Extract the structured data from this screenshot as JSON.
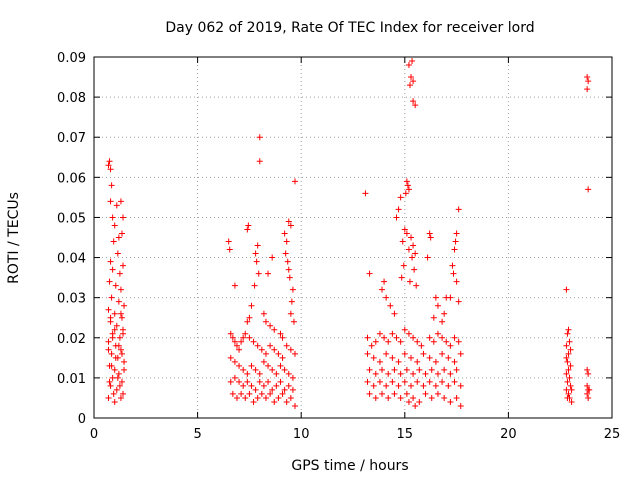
{
  "chart_data": {
    "type": "scatter",
    "title": "Day 062 of 2019, Rate Of TEC Index for receiver lord",
    "xlabel": "GPS time / hours",
    "ylabel": "ROTI / TECUs",
    "xlim": [
      0,
      25
    ],
    "ylim": [
      0,
      0.09
    ],
    "xticks": [
      0,
      5,
      10,
      15,
      20,
      25
    ],
    "yticks": [
      0,
      0.01,
      0.02,
      0.03,
      0.04,
      0.05,
      0.06,
      0.07,
      0.08,
      0.09
    ],
    "xtick_labels": [
      "0",
      "5",
      "10",
      "15",
      "20",
      "25"
    ],
    "ytick_labels": [
      "0",
      "0.01",
      "0.02",
      "0.03",
      "0.04",
      "0.05",
      "0.06",
      "0.07",
      "0.08",
      "0.09"
    ],
    "grid": true,
    "marker": "plus",
    "color": "#ff0000",
    "points": [
      [
        0.7,
        0.063
      ],
      [
        0.75,
        0.064
      ],
      [
        0.8,
        0.062
      ],
      [
        0.85,
        0.058
      ],
      [
        0.8,
        0.054
      ],
      [
        0.9,
        0.05
      ],
      [
        1.0,
        0.048
      ],
      [
        1.1,
        0.053
      ],
      [
        1.3,
        0.054
      ],
      [
        1.4,
        0.05
      ],
      [
        1.2,
        0.045
      ],
      [
        1.35,
        0.046
      ],
      [
        0.95,
        0.044
      ],
      [
        1.15,
        0.041
      ],
      [
        1.4,
        0.038
      ],
      [
        0.8,
        0.039
      ],
      [
        0.9,
        0.037
      ],
      [
        1.25,
        0.036
      ],
      [
        0.75,
        0.034
      ],
      [
        1.05,
        0.033
      ],
      [
        1.3,
        0.032
      ],
      [
        0.85,
        0.03
      ],
      [
        1.2,
        0.029
      ],
      [
        1.45,
        0.028
      ],
      [
        0.7,
        0.027
      ],
      [
        1.0,
        0.026
      ],
      [
        1.35,
        0.025
      ],
      [
        0.8,
        0.024
      ],
      [
        1.1,
        0.023
      ],
      [
        1.4,
        0.022
      ],
      [
        0.9,
        0.021
      ],
      [
        1.25,
        0.02
      ],
      [
        0.7,
        0.019
      ],
      [
        1.05,
        0.018
      ],
      [
        1.3,
        0.017
      ],
      [
        0.85,
        0.016
      ],
      [
        1.15,
        0.015
      ],
      [
        1.45,
        0.014
      ],
      [
        0.75,
        0.013
      ],
      [
        1.0,
        0.012
      ],
      [
        1.2,
        0.011
      ],
      [
        0.9,
        0.01
      ],
      [
        1.35,
        0.009
      ],
      [
        0.8,
        0.008
      ],
      [
        1.1,
        0.007
      ],
      [
        1.4,
        0.006
      ],
      [
        0.7,
        0.005
      ],
      [
        1.0,
        0.004
      ],
      [
        1.3,
        0.005
      ],
      [
        0.95,
        0.006
      ],
      [
        1.25,
        0.008
      ],
      [
        0.75,
        0.009
      ],
      [
        1.15,
        0.01
      ],
      [
        1.45,
        0.012
      ],
      [
        0.85,
        0.013
      ],
      [
        1.05,
        0.015
      ],
      [
        1.35,
        0.016
      ],
      [
        0.7,
        0.017
      ],
      [
        1.2,
        0.018
      ],
      [
        0.9,
        0.02
      ],
      [
        1.4,
        0.021
      ],
      [
        1.0,
        0.022
      ],
      [
        0.8,
        0.025
      ],
      [
        1.3,
        0.026
      ],
      [
        6.5,
        0.044
      ],
      [
        6.55,
        0.042
      ],
      [
        6.8,
        0.033
      ],
      [
        7.4,
        0.047
      ],
      [
        7.45,
        0.048
      ],
      [
        8.0,
        0.07
      ],
      [
        8.0,
        0.064
      ],
      [
        9.4,
        0.049
      ],
      [
        9.5,
        0.048
      ],
      [
        9.7,
        0.059
      ],
      [
        7.9,
        0.043
      ],
      [
        7.8,
        0.041
      ],
      [
        7.85,
        0.039
      ],
      [
        7.95,
        0.036
      ],
      [
        7.75,
        0.033
      ],
      [
        8.6,
        0.04
      ],
      [
        8.4,
        0.036
      ],
      [
        9.2,
        0.046
      ],
      [
        9.3,
        0.044
      ],
      [
        9.25,
        0.041
      ],
      [
        9.35,
        0.039
      ],
      [
        9.4,
        0.037
      ],
      [
        9.45,
        0.035
      ],
      [
        9.6,
        0.032
      ],
      [
        9.55,
        0.029
      ],
      [
        9.5,
        0.026
      ],
      [
        9.65,
        0.024
      ],
      [
        7.6,
        0.028
      ],
      [
        7.5,
        0.025
      ],
      [
        7.4,
        0.024
      ],
      [
        8.2,
        0.026
      ],
      [
        8.3,
        0.024
      ],
      [
        8.5,
        0.023
      ],
      [
        8.7,
        0.022
      ],
      [
        9.0,
        0.021
      ],
      [
        9.1,
        0.02
      ],
      [
        6.6,
        0.021
      ],
      [
        6.7,
        0.02
      ],
      [
        6.8,
        0.019
      ],
      [
        6.9,
        0.018
      ],
      [
        7.0,
        0.017
      ],
      [
        7.1,
        0.019
      ],
      [
        7.2,
        0.02
      ],
      [
        7.3,
        0.021
      ],
      [
        7.5,
        0.02
      ],
      [
        7.7,
        0.019
      ],
      [
        7.9,
        0.018
      ],
      [
        8.1,
        0.017
      ],
      [
        8.3,
        0.016
      ],
      [
        8.5,
        0.018
      ],
      [
        8.7,
        0.017
      ],
      [
        8.9,
        0.016
      ],
      [
        9.1,
        0.015
      ],
      [
        9.3,
        0.018
      ],
      [
        9.5,
        0.017
      ],
      [
        9.7,
        0.016
      ],
      [
        6.6,
        0.015
      ],
      [
        6.8,
        0.014
      ],
      [
        7.0,
        0.013
      ],
      [
        7.2,
        0.012
      ],
      [
        7.4,
        0.011
      ],
      [
        7.6,
        0.013
      ],
      [
        7.8,
        0.012
      ],
      [
        8.0,
        0.011
      ],
      [
        8.2,
        0.014
      ],
      [
        8.4,
        0.013
      ],
      [
        8.6,
        0.012
      ],
      [
        8.8,
        0.011
      ],
      [
        9.0,
        0.013
      ],
      [
        9.2,
        0.012
      ],
      [
        9.4,
        0.011
      ],
      [
        9.6,
        0.01
      ],
      [
        6.6,
        0.009
      ],
      [
        6.8,
        0.01
      ],
      [
        7.0,
        0.009
      ],
      [
        7.2,
        0.008
      ],
      [
        7.4,
        0.009
      ],
      [
        7.6,
        0.008
      ],
      [
        7.8,
        0.007
      ],
      [
        8.0,
        0.009
      ],
      [
        8.2,
        0.008
      ],
      [
        8.4,
        0.009
      ],
      [
        8.6,
        0.007
      ],
      [
        8.8,
        0.008
      ],
      [
        9.0,
        0.009
      ],
      [
        9.2,
        0.007
      ],
      [
        9.4,
        0.008
      ],
      [
        9.6,
        0.007
      ],
      [
        6.7,
        0.006
      ],
      [
        6.9,
        0.005
      ],
      [
        7.1,
        0.006
      ],
      [
        7.3,
        0.005
      ],
      [
        7.5,
        0.006
      ],
      [
        7.7,
        0.004
      ],
      [
        7.9,
        0.005
      ],
      [
        8.1,
        0.006
      ],
      [
        8.3,
        0.005
      ],
      [
        8.5,
        0.006
      ],
      [
        8.7,
        0.004
      ],
      [
        8.9,
        0.005
      ],
      [
        9.1,
        0.006
      ],
      [
        9.3,
        0.004
      ],
      [
        9.5,
        0.005
      ],
      [
        9.7,
        0.003
      ],
      [
        13.1,
        0.056
      ],
      [
        13.3,
        0.036
      ],
      [
        15.2,
        0.088
      ],
      [
        15.3,
        0.085
      ],
      [
        15.4,
        0.084
      ],
      [
        15.25,
        0.083
      ],
      [
        15.35,
        0.089
      ],
      [
        15.4,
        0.079
      ],
      [
        15.5,
        0.078
      ],
      [
        15.1,
        0.059
      ],
      [
        15.15,
        0.058
      ],
      [
        15.2,
        0.057
      ],
      [
        15.05,
        0.056
      ],
      [
        14.8,
        0.055
      ],
      [
        14.7,
        0.052
      ],
      [
        14.6,
        0.05
      ],
      [
        15.0,
        0.047
      ],
      [
        15.1,
        0.046
      ],
      [
        15.3,
        0.045
      ],
      [
        15.4,
        0.043
      ],
      [
        14.9,
        0.044
      ],
      [
        15.2,
        0.042
      ],
      [
        15.5,
        0.041
      ],
      [
        15.35,
        0.04
      ],
      [
        14.95,
        0.038
      ],
      [
        15.45,
        0.037
      ],
      [
        14.85,
        0.035
      ],
      [
        15.25,
        0.034
      ],
      [
        15.55,
        0.033
      ],
      [
        16.2,
        0.046
      ],
      [
        16.25,
        0.045
      ],
      [
        16.1,
        0.04
      ],
      [
        17.6,
        0.052
      ],
      [
        17.5,
        0.046
      ],
      [
        17.45,
        0.044
      ],
      [
        17.4,
        0.042
      ],
      [
        17.3,
        0.038
      ],
      [
        17.35,
        0.036
      ],
      [
        17.5,
        0.034
      ],
      [
        17.2,
        0.03
      ],
      [
        17.6,
        0.029
      ],
      [
        14.0,
        0.034
      ],
      [
        13.9,
        0.032
      ],
      [
        14.1,
        0.03
      ],
      [
        14.3,
        0.028
      ],
      [
        14.5,
        0.026
      ],
      [
        16.5,
        0.03
      ],
      [
        16.6,
        0.028
      ],
      [
        16.9,
        0.026
      ],
      [
        17.0,
        0.03
      ],
      [
        16.4,
        0.025
      ],
      [
        16.8,
        0.024
      ],
      [
        13.2,
        0.02
      ],
      [
        13.4,
        0.018
      ],
      [
        13.6,
        0.019
      ],
      [
        13.8,
        0.021
      ],
      [
        14.0,
        0.02
      ],
      [
        14.2,
        0.019
      ],
      [
        14.4,
        0.021
      ],
      [
        14.6,
        0.02
      ],
      [
        14.8,
        0.019
      ],
      [
        15.0,
        0.022
      ],
      [
        15.2,
        0.021
      ],
      [
        15.4,
        0.02
      ],
      [
        15.6,
        0.019
      ],
      [
        15.8,
        0.018
      ],
      [
        16.2,
        0.02
      ],
      [
        16.4,
        0.019
      ],
      [
        16.6,
        0.021
      ],
      [
        16.8,
        0.02
      ],
      [
        17.0,
        0.019
      ],
      [
        17.2,
        0.018
      ],
      [
        17.4,
        0.02
      ],
      [
        17.6,
        0.019
      ],
      [
        13.2,
        0.016
      ],
      [
        13.5,
        0.015
      ],
      [
        13.8,
        0.014
      ],
      [
        14.1,
        0.016
      ],
      [
        14.4,
        0.015
      ],
      [
        14.7,
        0.014
      ],
      [
        15.0,
        0.016
      ],
      [
        15.3,
        0.015
      ],
      [
        15.6,
        0.014
      ],
      [
        15.9,
        0.016
      ],
      [
        16.2,
        0.015
      ],
      [
        16.5,
        0.014
      ],
      [
        16.8,
        0.016
      ],
      [
        17.1,
        0.015
      ],
      [
        17.4,
        0.014
      ],
      [
        17.7,
        0.016
      ],
      [
        13.3,
        0.012
      ],
      [
        13.6,
        0.011
      ],
      [
        13.9,
        0.012
      ],
      [
        14.2,
        0.011
      ],
      [
        14.5,
        0.012
      ],
      [
        14.8,
        0.011
      ],
      [
        15.1,
        0.012
      ],
      [
        15.4,
        0.011
      ],
      [
        15.7,
        0.012
      ],
      [
        16.0,
        0.011
      ],
      [
        16.3,
        0.012
      ],
      [
        16.6,
        0.011
      ],
      [
        16.9,
        0.012
      ],
      [
        17.2,
        0.011
      ],
      [
        17.5,
        0.012
      ],
      [
        13.2,
        0.009
      ],
      [
        13.5,
        0.008
      ],
      [
        13.8,
        0.009
      ],
      [
        14.1,
        0.008
      ],
      [
        14.4,
        0.009
      ],
      [
        14.7,
        0.008
      ],
      [
        15.0,
        0.009
      ],
      [
        15.3,
        0.008
      ],
      [
        15.6,
        0.009
      ],
      [
        15.9,
        0.008
      ],
      [
        16.2,
        0.009
      ],
      [
        16.5,
        0.008
      ],
      [
        16.8,
        0.009
      ],
      [
        17.1,
        0.008
      ],
      [
        17.4,
        0.009
      ],
      [
        17.7,
        0.008
      ],
      [
        13.3,
        0.006
      ],
      [
        13.6,
        0.005
      ],
      [
        13.9,
        0.006
      ],
      [
        14.2,
        0.005
      ],
      [
        14.5,
        0.006
      ],
      [
        14.8,
        0.005
      ],
      [
        15.1,
        0.006
      ],
      [
        15.4,
        0.005
      ],
      [
        15.7,
        0.004
      ],
      [
        16.0,
        0.006
      ],
      [
        16.3,
        0.005
      ],
      [
        16.6,
        0.006
      ],
      [
        16.9,
        0.005
      ],
      [
        17.2,
        0.004
      ],
      [
        17.5,
        0.005
      ],
      [
        17.7,
        0.003
      ],
      [
        15.2,
        0.004
      ],
      [
        15.5,
        0.003
      ],
      [
        22.8,
        0.032
      ],
      [
        22.9,
        0.022
      ],
      [
        22.85,
        0.021
      ],
      [
        22.95,
        0.019
      ],
      [
        22.8,
        0.018
      ],
      [
        23.0,
        0.017
      ],
      [
        22.9,
        0.016
      ],
      [
        22.8,
        0.015
      ],
      [
        22.85,
        0.014
      ],
      [
        23.0,
        0.013
      ],
      [
        22.9,
        0.012
      ],
      [
        22.8,
        0.011
      ],
      [
        22.95,
        0.01
      ],
      [
        22.85,
        0.009
      ],
      [
        23.0,
        0.008
      ],
      [
        22.8,
        0.007
      ],
      [
        22.9,
        0.006
      ],
      [
        22.95,
        0.005
      ],
      [
        23.05,
        0.004
      ],
      [
        22.85,
        0.005
      ],
      [
        23.05,
        0.007
      ],
      [
        23.8,
        0.085
      ],
      [
        23.85,
        0.084
      ],
      [
        23.8,
        0.082
      ],
      [
        23.85,
        0.057
      ],
      [
        23.8,
        0.012
      ],
      [
        23.85,
        0.011
      ],
      [
        23.8,
        0.008
      ],
      [
        23.85,
        0.007
      ],
      [
        23.8,
        0.006
      ],
      [
        23.85,
        0.005
      ],
      [
        23.9,
        0.007
      ]
    ]
  }
}
